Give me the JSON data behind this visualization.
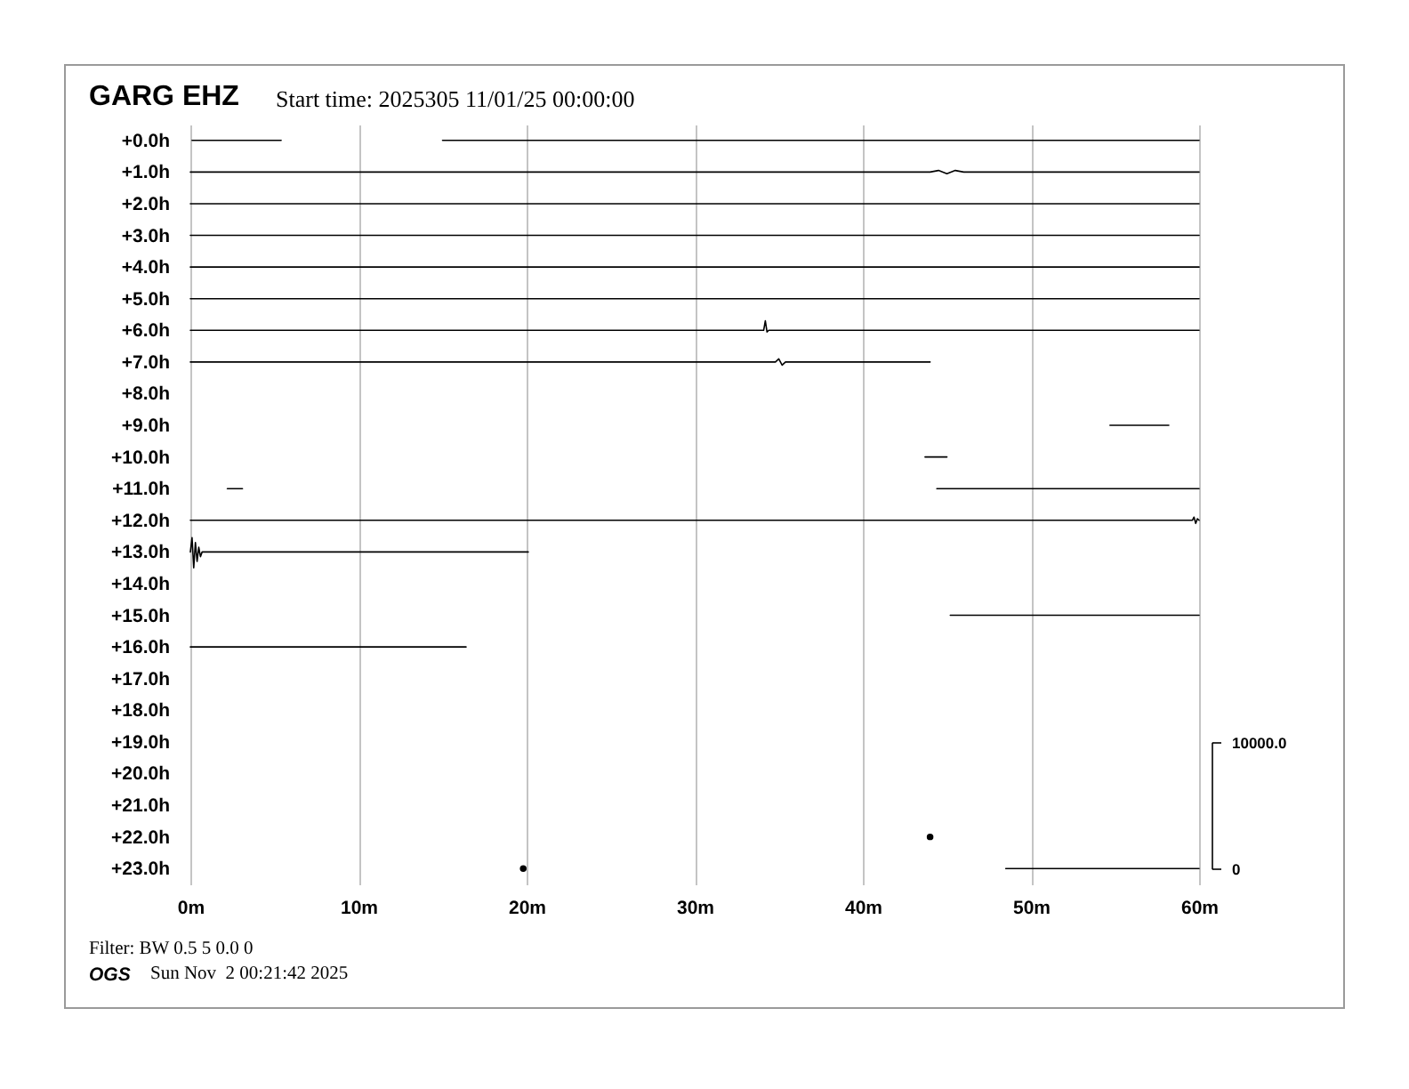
{
  "chart_data": {
    "type": "line",
    "title": "GARG EHZ",
    "subtitle": "Start time: 2025305 11/01/25 00:00:00",
    "annotations": [
      "Filter: BW 0.5 5 0.0 0",
      "OGS",
      "Sun Nov  2 00:21:42 2025"
    ],
    "xlim": [
      0,
      60
    ],
    "xticks": [
      {
        "value": 0,
        "label": "0m"
      },
      {
        "value": 10,
        "label": "10m"
      },
      {
        "value": 20,
        "label": "20m"
      },
      {
        "value": 30,
        "label": "30m"
      },
      {
        "value": 40,
        "label": "40m"
      },
      {
        "value": 50,
        "label": "50m"
      },
      {
        "value": 60,
        "label": "60m"
      }
    ],
    "ylim": [
      23.5,
      -0.5
    ],
    "yticks": [
      {
        "value": 0,
        "label": "+0.0h"
      },
      {
        "value": 1,
        "label": "+1.0h"
      },
      {
        "value": 2,
        "label": "+2.0h"
      },
      {
        "value": 3,
        "label": "+3.0h"
      },
      {
        "value": 4,
        "label": "+4.0h"
      },
      {
        "value": 5,
        "label": "+5.0h"
      },
      {
        "value": 6,
        "label": "+6.0h"
      },
      {
        "value": 7,
        "label": "+7.0h"
      },
      {
        "value": 8,
        "label": "+8.0h"
      },
      {
        "value": 9,
        "label": "+9.0h"
      },
      {
        "value": 10,
        "label": "+10.0h"
      },
      {
        "value": 11,
        "label": "+11.0h"
      },
      {
        "value": 12,
        "label": "+12.0h"
      },
      {
        "value": 13,
        "label": "+13.0h"
      },
      {
        "value": 14,
        "label": "+14.0h"
      },
      {
        "value": 15,
        "label": "+15.0h"
      },
      {
        "value": 16,
        "label": "+16.0h"
      },
      {
        "value": 17,
        "label": "+17.0h"
      },
      {
        "value": 18,
        "label": "+18.0h"
      },
      {
        "value": 19,
        "label": "+19.0h"
      },
      {
        "value": 20,
        "label": "+20.0h"
      },
      {
        "value": 21,
        "label": "+21.0h"
      },
      {
        "value": 22,
        "label": "+22.0h"
      },
      {
        "value": 23,
        "label": "+23.0h"
      }
    ],
    "y2lim": [
      -1250,
      58750
    ],
    "y2ticks": [
      0,
      {
        "value": 10000,
        "label": "10000.0"
      }
    ],
    "grid": "x",
    "series": [
      {
        "color": "#000000",
        "x": [
          0.1,
          5.4
        ],
        "values": [
          0,
          0
        ]
      },
      {
        "color": "#000000",
        "x": [
          15,
          60
        ],
        "values": [
          0,
          0
        ]
      },
      {
        "color": "#000000",
        "x": [
          0,
          44,
          44.5,
          45,
          45.5,
          46,
          60
        ],
        "values": [
          1,
          1,
          0.95,
          1.05,
          0.95,
          1,
          1
        ]
      },
      {
        "color": "#000000",
        "x": [
          0,
          60
        ],
        "values": [
          2,
          2
        ]
      },
      {
        "color": "#000000",
        "x": [
          0,
          60
        ],
        "values": [
          3,
          3
        ]
      },
      {
        "color": "#000000",
        "x": [
          0,
          60
        ],
        "values": [
          4,
          4
        ]
      },
      {
        "color": "#000000",
        "x": [
          0,
          60
        ],
        "values": [
          5,
          5
        ]
      },
      {
        "color": "#000000",
        "x": [
          0,
          34.1,
          34.2,
          34.3,
          34.4,
          60
        ],
        "values": [
          6,
          6,
          5.7,
          6.05,
          6,
          6
        ]
      },
      {
        "color": "#000000",
        "x": [
          0,
          34.8,
          35,
          35.2,
          35.4,
          44
        ],
        "values": [
          7,
          7,
          6.9,
          7.1,
          7,
          7
        ]
      },
      {
        "color": "#000000",
        "x": [
          54.7,
          58.2
        ],
        "values": [
          9,
          9
        ]
      },
      {
        "color": "#000000",
        "x": [
          43.7,
          45
        ],
        "values": [
          10,
          10
        ]
      },
      {
        "color": "#000000",
        "x": [
          2.2,
          3.1
        ],
        "values": [
          11,
          11
        ]
      },
      {
        "color": "#000000",
        "x": [
          44.4,
          60
        ],
        "values": [
          11,
          11
        ]
      },
      {
        "color": "#000000",
        "x": [
          0,
          59.6,
          59.7,
          59.8,
          59.9,
          60
        ],
        "values": [
          12,
          12,
          11.9,
          12.1,
          11.95,
          12
        ]
      },
      {
        "color": "#000000",
        "x": [
          0,
          0.1,
          0.2,
          0.3,
          0.4,
          0.5,
          0.6,
          0.7,
          20.1
        ],
        "values": [
          13,
          12.55,
          13.5,
          12.7,
          13.3,
          12.85,
          13.15,
          13,
          13
        ]
      },
      {
        "color": "#000000",
        "x": [
          45.2,
          60
        ],
        "values": [
          15,
          15
        ]
      },
      {
        "color": "#000000",
        "x": [
          0,
          16.4
        ],
        "values": [
          16,
          16
        ]
      },
      {
        "type": "scatter",
        "color": "#000000",
        "x": [
          44
        ],
        "values": [
          22
        ]
      },
      {
        "type": "scatter",
        "color": "#000000",
        "x": [
          19.8
        ],
        "values": [
          23
        ]
      },
      {
        "color": "#000000",
        "x": [
          48.5,
          60
        ],
        "values": [
          23,
          23
        ]
      }
    ]
  }
}
